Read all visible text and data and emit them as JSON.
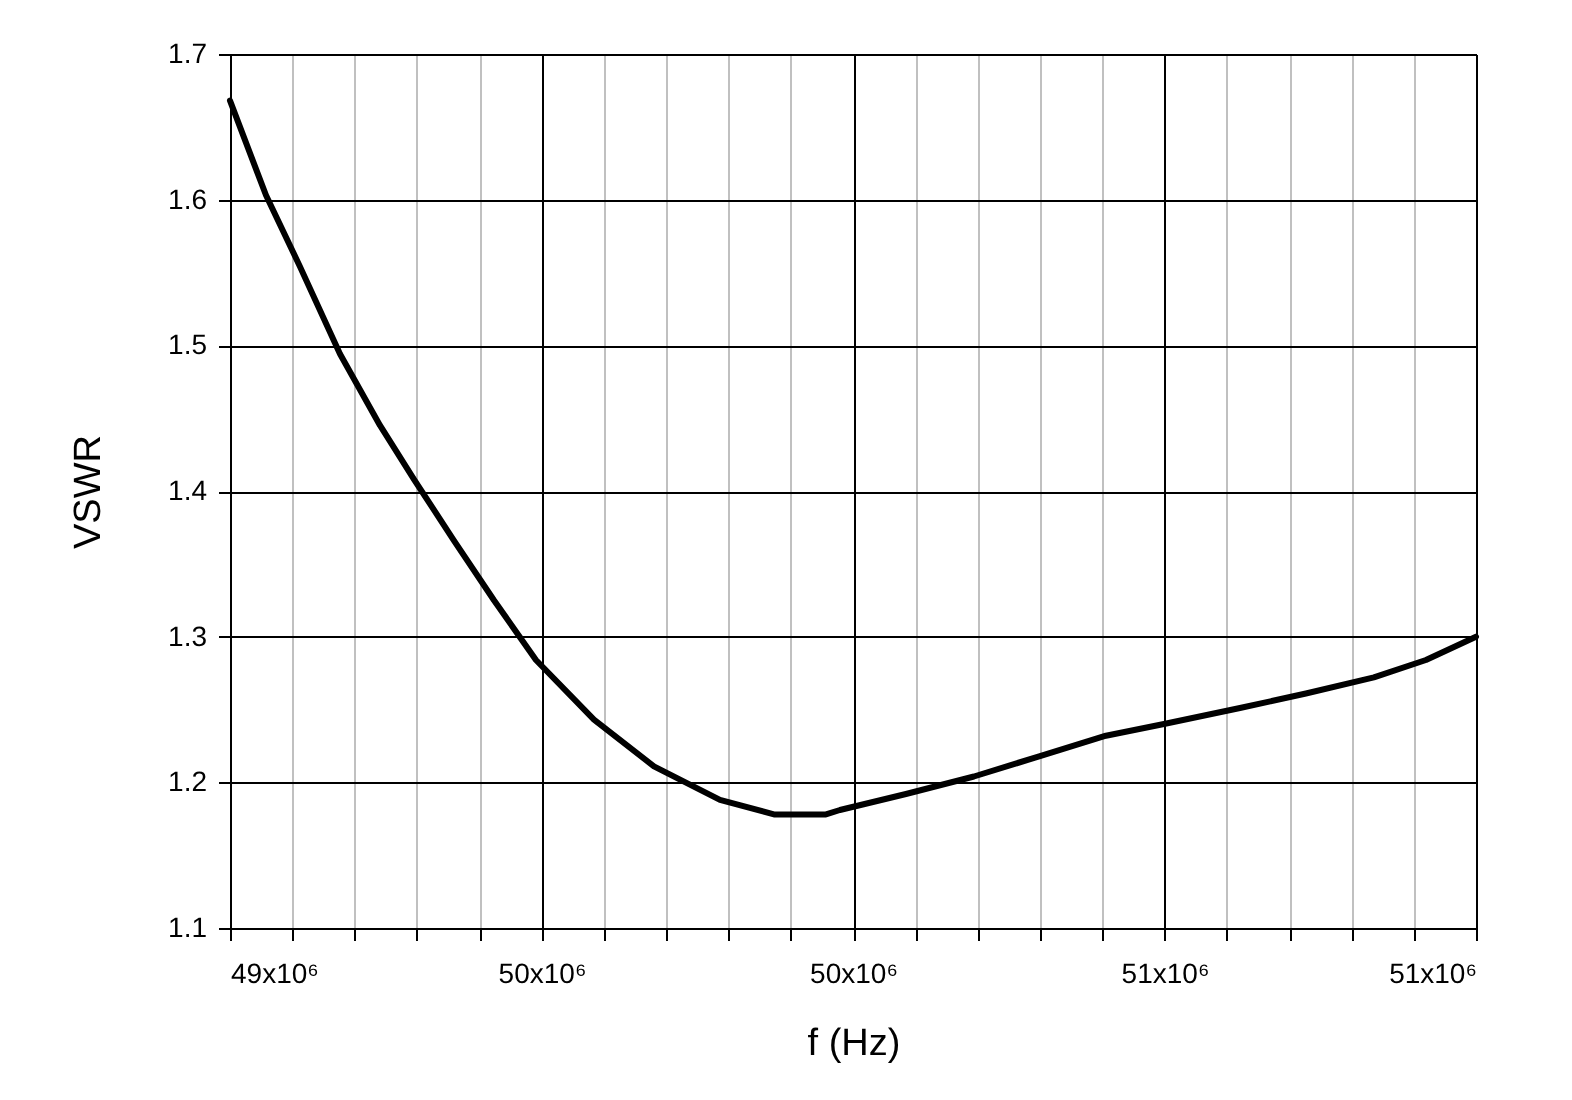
{
  "chart_data": {
    "type": "line",
    "xlabel": "f (Hz)",
    "ylabel": "VSWR",
    "x": [
      49250000,
      49307800,
      49362400,
      49426600,
      49490800,
      49545300,
      49609500,
      49673700,
      49741100,
      49834200,
      49930500,
      50036500,
      50123100,
      50206600,
      50229000,
      50335000,
      50444100,
      50550100,
      50656000,
      50749100,
      50871100,
      50977000,
      51086100,
      51169600,
      51250000
    ],
    "series": [
      {
        "color": "#000000",
        "values": [
          1.668,
          1.603,
          1.554,
          1.494,
          1.445,
          1.408,
          1.366,
          1.325,
          1.284,
          1.243,
          1.211,
          1.188,
          1.178,
          1.178,
          1.181,
          1.192,
          1.204,
          1.218,
          1.232,
          1.24,
          1.251,
          1.261,
          1.272,
          1.284,
          1.3
        ]
      }
    ],
    "xlim": [
      49250000,
      51250000
    ],
    "xticks": [
      {
        "value": 49250000,
        "label": "49x10⁶"
      },
      {
        "value": 49350000,
        "label": null
      },
      {
        "value": 49450000,
        "label": null
      },
      {
        "value": 49550000,
        "label": null
      },
      {
        "value": 49650000,
        "label": null
      },
      {
        "value": 49750000,
        "label": "50x10⁶"
      },
      {
        "value": 49850000,
        "label": null
      },
      {
        "value": 49950000,
        "label": null
      },
      {
        "value": 50050000,
        "label": null
      },
      {
        "value": 50150000,
        "label": null
      },
      {
        "value": 50250000,
        "label": "50x10⁶"
      },
      {
        "value": 50350000,
        "label": null
      },
      {
        "value": 50450000,
        "label": null
      },
      {
        "value": 50550000,
        "label": null
      },
      {
        "value": 50650000,
        "label": null
      },
      {
        "value": 50750000,
        "label": "51x10⁶"
      },
      {
        "value": 50850000,
        "label": null
      },
      {
        "value": 50950000,
        "label": null
      },
      {
        "value": 51050000,
        "label": null
      },
      {
        "value": 51150000,
        "label": null
      },
      {
        "value": 51250000,
        "label": "51x10⁶"
      }
    ],
    "ylim": [
      1.1,
      1.7
    ],
    "yticks": [
      1.1,
      1.2,
      1.3,
      1.4,
      1.5,
      1.6,
      1.7
    ],
    "grid": true,
    "marker": "none",
    "line_style": "solid"
  }
}
